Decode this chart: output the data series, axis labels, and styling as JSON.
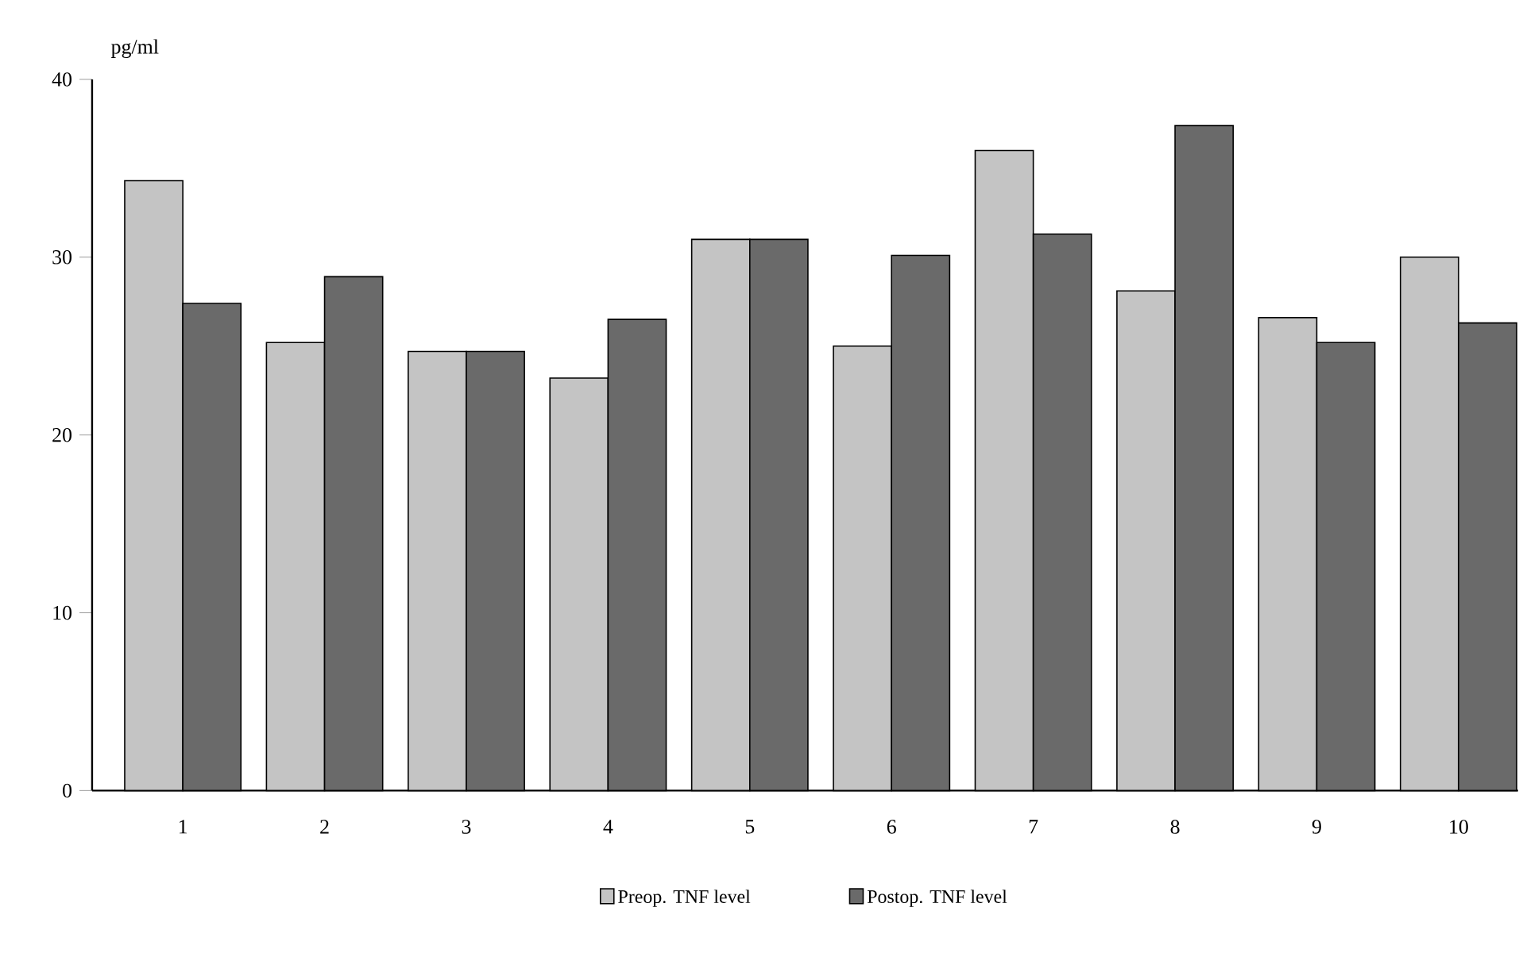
{
  "chart_data": {
    "type": "bar",
    "ylabel": "pg/ml",
    "categories": [
      "1",
      "2",
      "3",
      "4",
      "5",
      "6",
      "7",
      "8",
      "9",
      "10"
    ],
    "series": [
      {
        "name": "Preop. TNF level",
        "color": "#c4c4c4",
        "values": [
          34.3,
          25.2,
          24.7,
          23.2,
          31.0,
          25.0,
          36.0,
          28.1,
          26.6,
          30.0
        ]
      },
      {
        "name": "Postop. TNF level",
        "color": "#6a6a6a",
        "values": [
          27.4,
          28.9,
          24.7,
          26.5,
          31.0,
          30.1,
          31.3,
          37.4,
          25.2,
          26.3
        ]
      }
    ],
    "ylim": [
      0,
      40
    ],
    "yticks": [
      0,
      10,
      20,
      30,
      40
    ],
    "legend": "bottom"
  }
}
